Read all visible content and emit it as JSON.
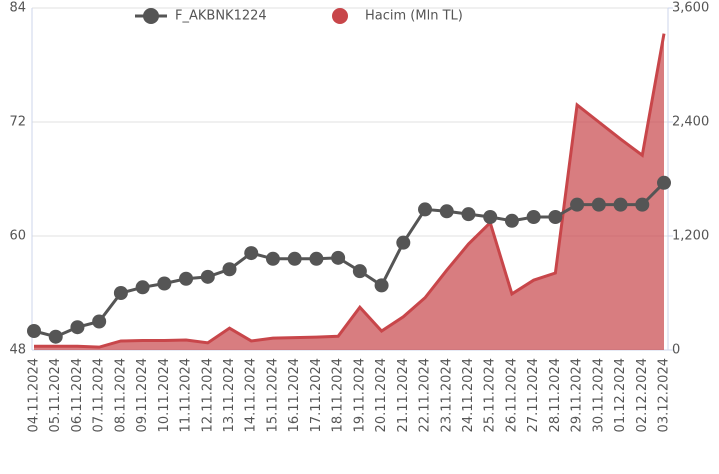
{
  "chart_data": {
    "type": "line-area",
    "categories": [
      "04.11.2024",
      "05.11.2024",
      "06.11.2024",
      "07.11.2024",
      "08.11.2024",
      "09.11.2024",
      "10.11.2024",
      "11.11.2024",
      "12.11.2024",
      "13.11.2024",
      "14.11.2024",
      "15.11.2024",
      "16.11.2024",
      "17.11.2024",
      "18.11.2024",
      "19.11.2024",
      "20.11.2024",
      "21.11.2024",
      "22.11.2024",
      "23.11.2024",
      "24.11.2024",
      "25.11.2024",
      "26.11.2024",
      "27.11.2024",
      "28.11.2024",
      "29.11.2024",
      "30.11.2024",
      "01.12.2024",
      "02.12.2024",
      "03.12.2024"
    ],
    "series": [
      {
        "name": "F_AKBNK1224",
        "color": "#555555",
        "values": [
          50.0,
          49.4,
          50.4,
          51.0,
          54.0,
          54.6,
          55.0,
          55.5,
          55.7,
          56.5,
          58.2,
          57.6,
          57.6,
          57.6,
          57.7,
          56.3,
          54.8,
          59.3,
          62.8,
          62.6,
          62.3,
          62.0,
          61.6,
          62.0,
          62.0,
          63.3,
          63.3,
          63.3,
          63.3,
          65.6
        ]
      },
      {
        "name": "Hacim (Mln TL)",
        "color": "#c8464a",
        "axis": "y2",
        "values": [
          40,
          40,
          40,
          30,
          95,
          100,
          100,
          105,
          75,
          230,
          95,
          125,
          130,
          135,
          145,
          450,
          200,
          350,
          550,
          840,
          1115,
          1340,
          590,
          735,
          810,
          2580,
          2400,
          2220,
          2050,
          3330
        ]
      }
    ],
    "ylim": [
      48,
      84
    ],
    "yticks": [
      48,
      60,
      72,
      84
    ],
    "y2lim": [
      0,
      3600
    ],
    "y2ticks": [
      0,
      {
        "value": 1200,
        "label": "1,200"
      },
      {
        "value": 2400,
        "label": "2,400"
      },
      {
        "value": 3600,
        "label": "3,600"
      }
    ],
    "grid": true,
    "legend": "top"
  }
}
